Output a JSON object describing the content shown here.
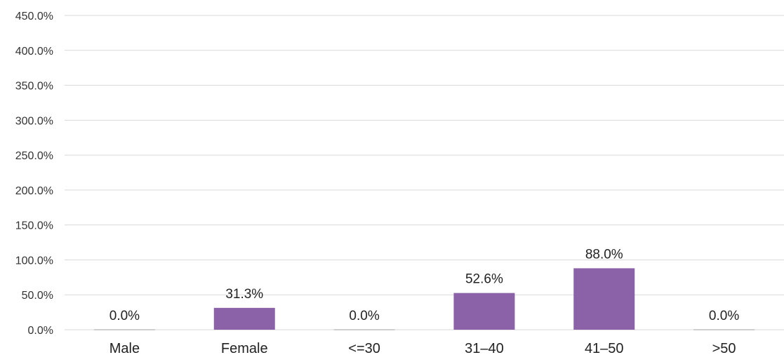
{
  "chart_data": {
    "type": "bar",
    "title": "",
    "xlabel": "",
    "ylabel": "",
    "categories": [
      "Male",
      "Female",
      "<=30",
      "31–40",
      "41–50",
      ">50"
    ],
    "values": [
      0.0,
      31.3,
      0.0,
      52.6,
      88.0,
      0.0
    ],
    "data_labels": [
      "0.0%",
      "31.3%",
      "0.0%",
      "52.6%",
      "88.0%",
      "0.0%"
    ],
    "ylim": [
      0,
      450
    ],
    "yticks": [
      0,
      50,
      100,
      150,
      200,
      250,
      300,
      350,
      400,
      450
    ],
    "ytick_labels": [
      "0.0%",
      "50.0%",
      "100.0%",
      "150.0%",
      "200.0%",
      "250.0%",
      "300.0%",
      "350.0%",
      "400.0%",
      "450.0%"
    ],
    "grid": true,
    "legend": "none",
    "bar_color": "#8b62a8",
    "grid_color": "#d9d9d9"
  }
}
